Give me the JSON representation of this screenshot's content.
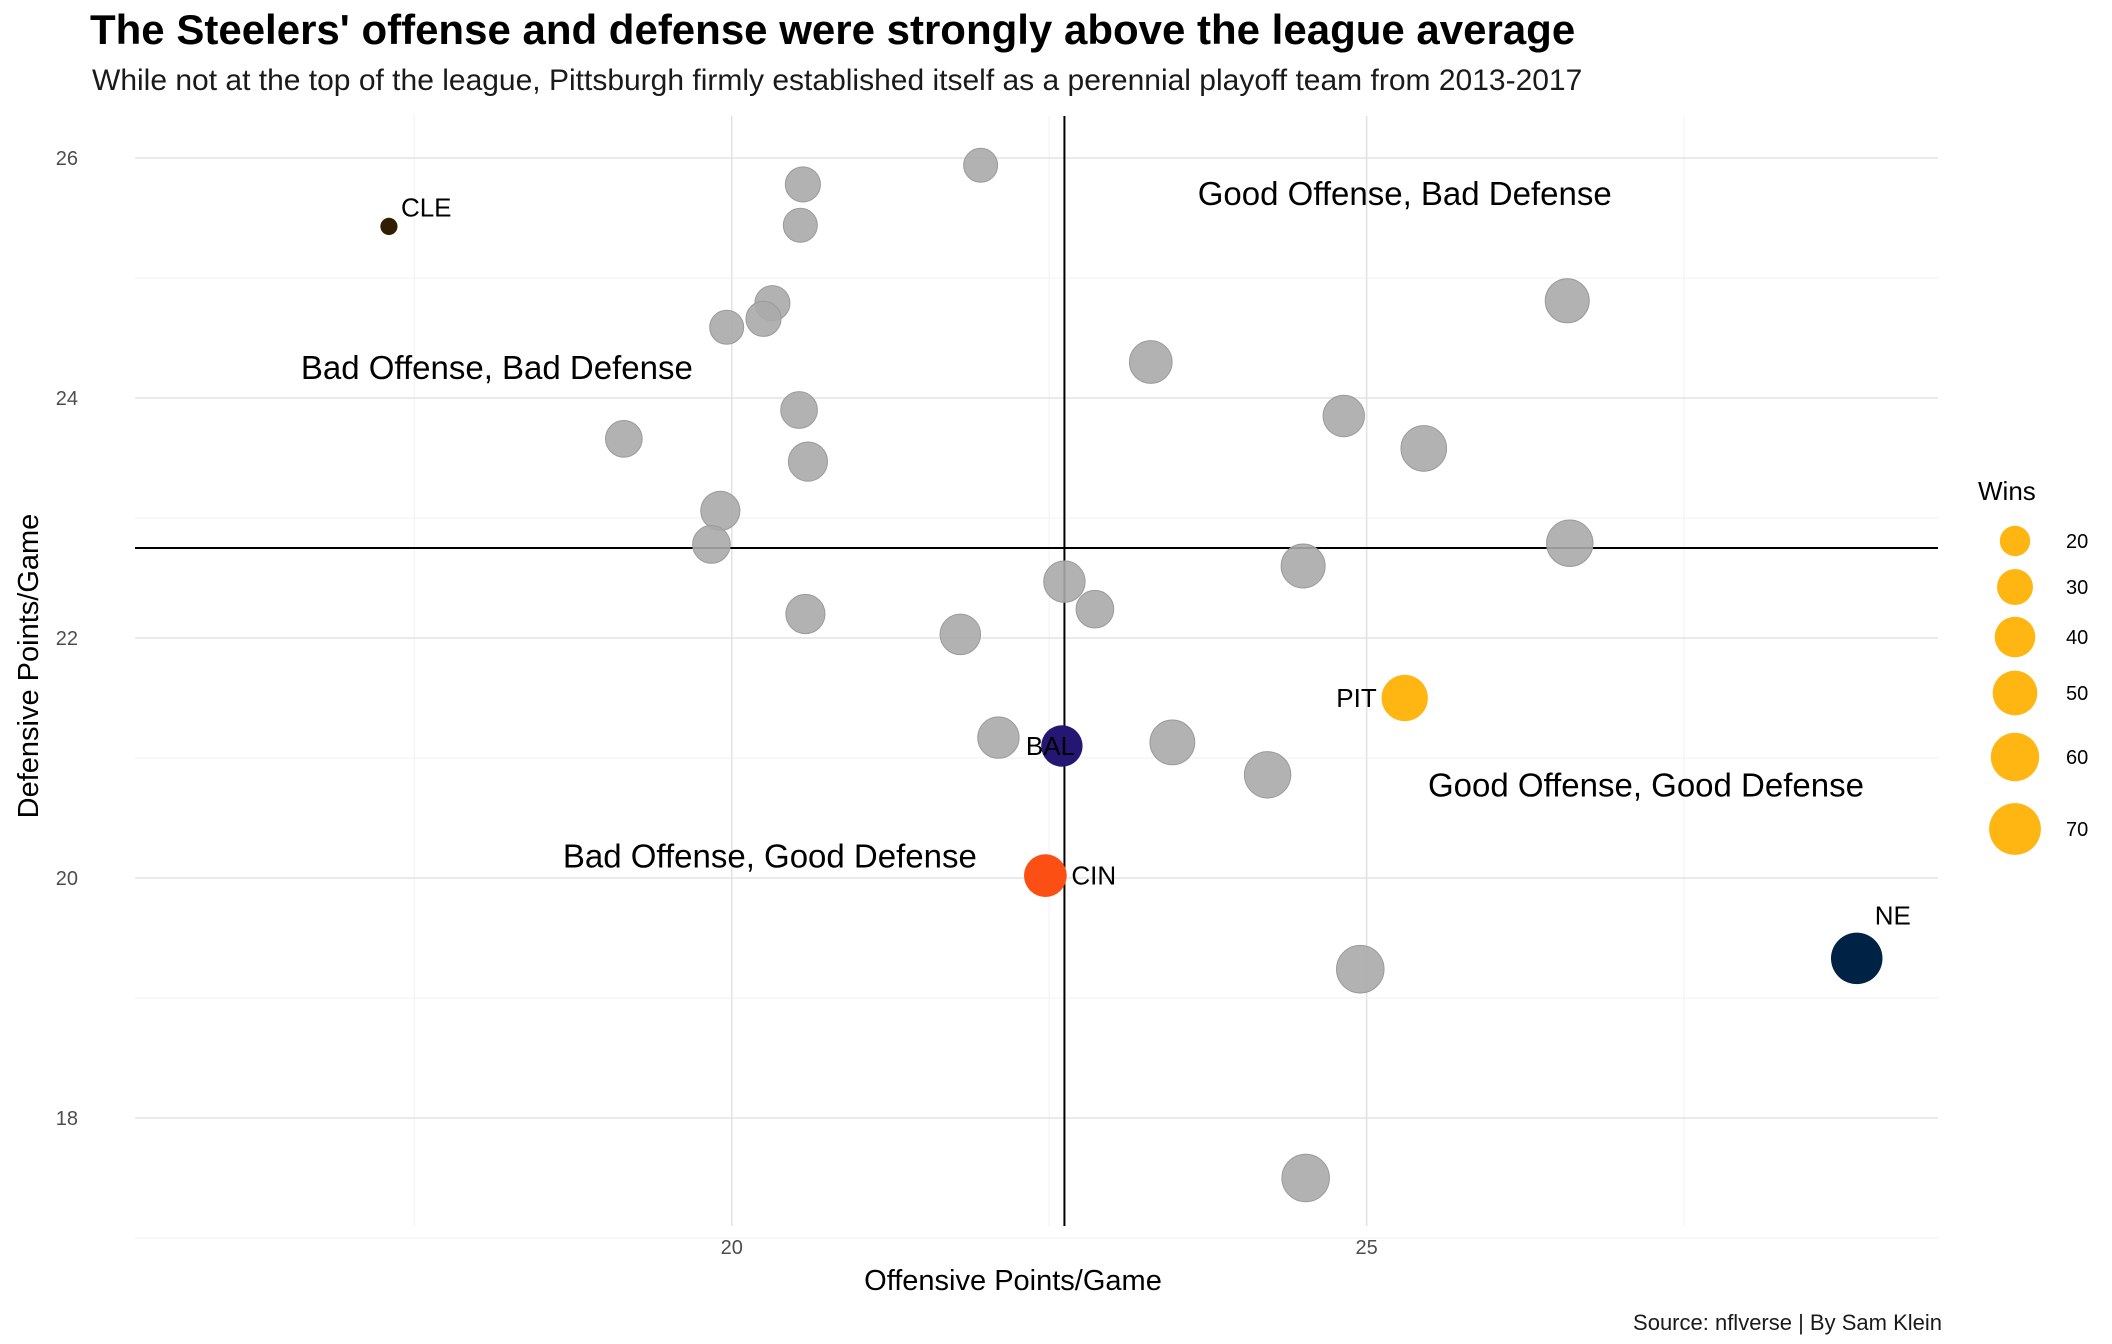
{
  "title": "The Steelers' offense and defense were strongly above the league average",
  "subtitle": "While not at the top of the league, Pittsburgh firmly established itself as a perennial playoff team from 2013-2017",
  "caption": "Source: nflverse | By Sam Klein",
  "chart_data": {
    "type": "scatter",
    "xlabel": "Offensive Points/Game",
    "ylabel": "Defensive Points/Game",
    "xlim": [
      15.3,
      29.5
    ],
    "ylim": [
      17.1,
      26.35
    ],
    "xticks": [
      20,
      25
    ],
    "yticks": [
      18,
      20,
      22,
      24,
      26
    ],
    "grid": true,
    "reference_lines": {
      "x": 22.62,
      "y": 22.75
    },
    "quadrant_labels": [
      {
        "text": "Good Offense, Bad Defense",
        "x": 25.3,
        "y": 25.7
      },
      {
        "text": "Bad Offense, Bad Defense",
        "x": 18.15,
        "y": 24.25
      },
      {
        "text": "Good Offense, Good Defense",
        "x": 27.2,
        "y": 20.77
      },
      {
        "text": "Bad Offense, Good Defense",
        "x": 20.3,
        "y": 20.18
      }
    ],
    "legend": {
      "title": "Wins",
      "position": "right",
      "color": "#FFB612",
      "breaks": [
        20,
        30,
        40,
        50,
        60,
        70
      ]
    },
    "points": [
      {
        "team": "CLE",
        "x": 17.3,
        "y": 25.43,
        "wins": 4,
        "color": "#311D00",
        "label": "CLE"
      },
      {
        "team": "BAL",
        "x": 22.6,
        "y": 21.1,
        "wins": 40,
        "color": "#241773",
        "label": "BAL"
      },
      {
        "team": "CIN",
        "x": 22.47,
        "y": 20.02,
        "wins": 43,
        "color": "#FB4F14",
        "label": "CIN"
      },
      {
        "team": "PIT",
        "x": 25.3,
        "y": 21.5,
        "wins": 52,
        "color": "#FFB612",
        "label": "PIT"
      },
      {
        "team": "NE",
        "x": 28.86,
        "y": 19.33,
        "wins": 66,
        "color": "#002244",
        "label": "NE"
      },
      {
        "x": 21.96,
        "y": 25.94,
        "wins": 25,
        "color": "#aaaaaa"
      },
      {
        "x": 20.56,
        "y": 25.78,
        "wins": 27,
        "color": "#aaaaaa"
      },
      {
        "x": 20.54,
        "y": 25.44,
        "wins": 25,
        "color": "#aaaaaa"
      },
      {
        "x": 20.32,
        "y": 24.79,
        "wins": 27,
        "color": "#aaaaaa"
      },
      {
        "x": 20.25,
        "y": 24.66,
        "wins": 27,
        "color": "#aaaaaa"
      },
      {
        "x": 19.96,
        "y": 24.59,
        "wins": 25,
        "color": "#aaaaaa"
      },
      {
        "x": 20.53,
        "y": 23.9,
        "wins": 30,
        "color": "#aaaaaa"
      },
      {
        "x": 20.6,
        "y": 23.47,
        "wins": 35,
        "color": "#aaaaaa"
      },
      {
        "x": 19.15,
        "y": 23.66,
        "wins": 30,
        "color": "#aaaaaa"
      },
      {
        "x": 19.91,
        "y": 23.06,
        "wins": 35,
        "color": "#aaaaaa"
      },
      {
        "x": 19.84,
        "y": 22.78,
        "wins": 32,
        "color": "#aaaaaa"
      },
      {
        "x": 20.58,
        "y": 22.2,
        "wins": 35,
        "color": "#aaaaaa"
      },
      {
        "x": 23.3,
        "y": 24.3,
        "wins": 43,
        "color": "#aaaaaa"
      },
      {
        "x": 24.82,
        "y": 23.85,
        "wins": 40,
        "color": "#aaaaaa"
      },
      {
        "x": 25.45,
        "y": 23.58,
        "wins": 50,
        "color": "#aaaaaa"
      },
      {
        "x": 26.58,
        "y": 24.81,
        "wins": 46,
        "color": "#aaaaaa"
      },
      {
        "x": 26.6,
        "y": 22.79,
        "wins": 52,
        "color": "#aaaaaa"
      },
      {
        "x": 24.5,
        "y": 22.6,
        "wins": 46,
        "color": "#aaaaaa"
      },
      {
        "x": 22.62,
        "y": 22.47,
        "wins": 40,
        "color": "#aaaaaa"
      },
      {
        "x": 22.86,
        "y": 22.24,
        "wins": 32,
        "color": "#aaaaaa"
      },
      {
        "x": 21.8,
        "y": 22.03,
        "wins": 38,
        "color": "#aaaaaa"
      },
      {
        "x": 22.1,
        "y": 21.17,
        "wins": 40,
        "color": "#aaaaaa"
      },
      {
        "x": 23.47,
        "y": 21.13,
        "wins": 48,
        "color": "#aaaaaa"
      },
      {
        "x": 24.22,
        "y": 20.86,
        "wins": 52,
        "color": "#aaaaaa"
      },
      {
        "x": 24.95,
        "y": 19.24,
        "wins": 55,
        "color": "#aaaaaa"
      },
      {
        "x": 24.52,
        "y": 17.5,
        "wins": 55,
        "color": "#aaaaaa"
      }
    ]
  }
}
